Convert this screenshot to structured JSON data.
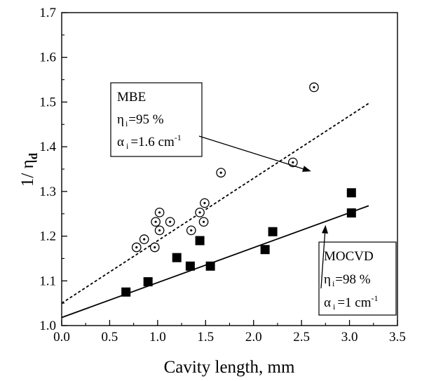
{
  "chart_data": {
    "type": "scatter",
    "xlabel": "Cavity length, mm",
    "ylabel": {
      "main": "1/ η",
      "sub": "d"
    },
    "xlim": [
      0.0,
      3.5
    ],
    "ylim": [
      1.0,
      1.7
    ],
    "xticks": [
      "0.0",
      "0.5",
      "1.0",
      "1.5",
      "2.0",
      "2.5",
      "3.0",
      "3.5"
    ],
    "yticks": [
      "1.0",
      "1.1",
      "1.2",
      "1.3",
      "1.4",
      "1.5",
      "1.6",
      "1.7"
    ],
    "grid": false,
    "series": [
      {
        "name": "MBE",
        "marker": "circle-dot",
        "points": [
          [
            0.78,
            1.175
          ],
          [
            0.86,
            1.193
          ],
          [
            0.97,
            1.175
          ],
          [
            0.98,
            1.232
          ],
          [
            1.02,
            1.253
          ],
          [
            1.02,
            1.213
          ],
          [
            1.13,
            1.232
          ],
          [
            1.35,
            1.213
          ],
          [
            1.44,
            1.253
          ],
          [
            1.48,
            1.232
          ],
          [
            1.49,
            1.274
          ],
          [
            1.66,
            1.342
          ],
          [
            2.41,
            1.365
          ],
          [
            2.63,
            1.533
          ]
        ],
        "fit": {
          "style": "dashed",
          "x": [
            0.0,
            3.2
          ],
          "y": [
            1.05,
            1.497
          ]
        }
      },
      {
        "name": "MOCVD",
        "marker": "filled-square",
        "points": [
          [
            0.67,
            1.075
          ],
          [
            0.9,
            1.098
          ],
          [
            1.2,
            1.152
          ],
          [
            1.34,
            1.133
          ],
          [
            1.44,
            1.19
          ],
          [
            1.55,
            1.133
          ],
          [
            2.12,
            1.17
          ],
          [
            2.2,
            1.21
          ],
          [
            3.02,
            1.297
          ],
          [
            3.02,
            1.252
          ]
        ],
        "fit": {
          "style": "solid",
          "x": [
            0.0,
            3.2
          ],
          "y": [
            1.018,
            1.268
          ]
        }
      }
    ],
    "annotations": [
      {
        "series": "MBE",
        "title": "MBE",
        "eta_sym": "η",
        "eta_sub": "i",
        "eta_val": "=95 %",
        "alpha_sym": "α",
        "alpha_sub": "i",
        "alpha_val": "=1.6 cm",
        "alpha_sup": "-1",
        "arrow_to": [
          2.6,
          1.345
        ]
      },
      {
        "series": "MOCVD",
        "title": "MOCVD",
        "eta_sym": "η",
        "eta_sub": "i",
        "eta_val": "=98 %",
        "alpha_sym": "α",
        "alpha_sub": "i",
        "alpha_val": "=1 cm",
        "alpha_sup": "-1",
        "arrow_to": [
          2.75,
          1.225
        ]
      }
    ],
    "colors": {
      "axis": "#000000",
      "markers": "#000000",
      "background": "#ffffff"
    }
  }
}
